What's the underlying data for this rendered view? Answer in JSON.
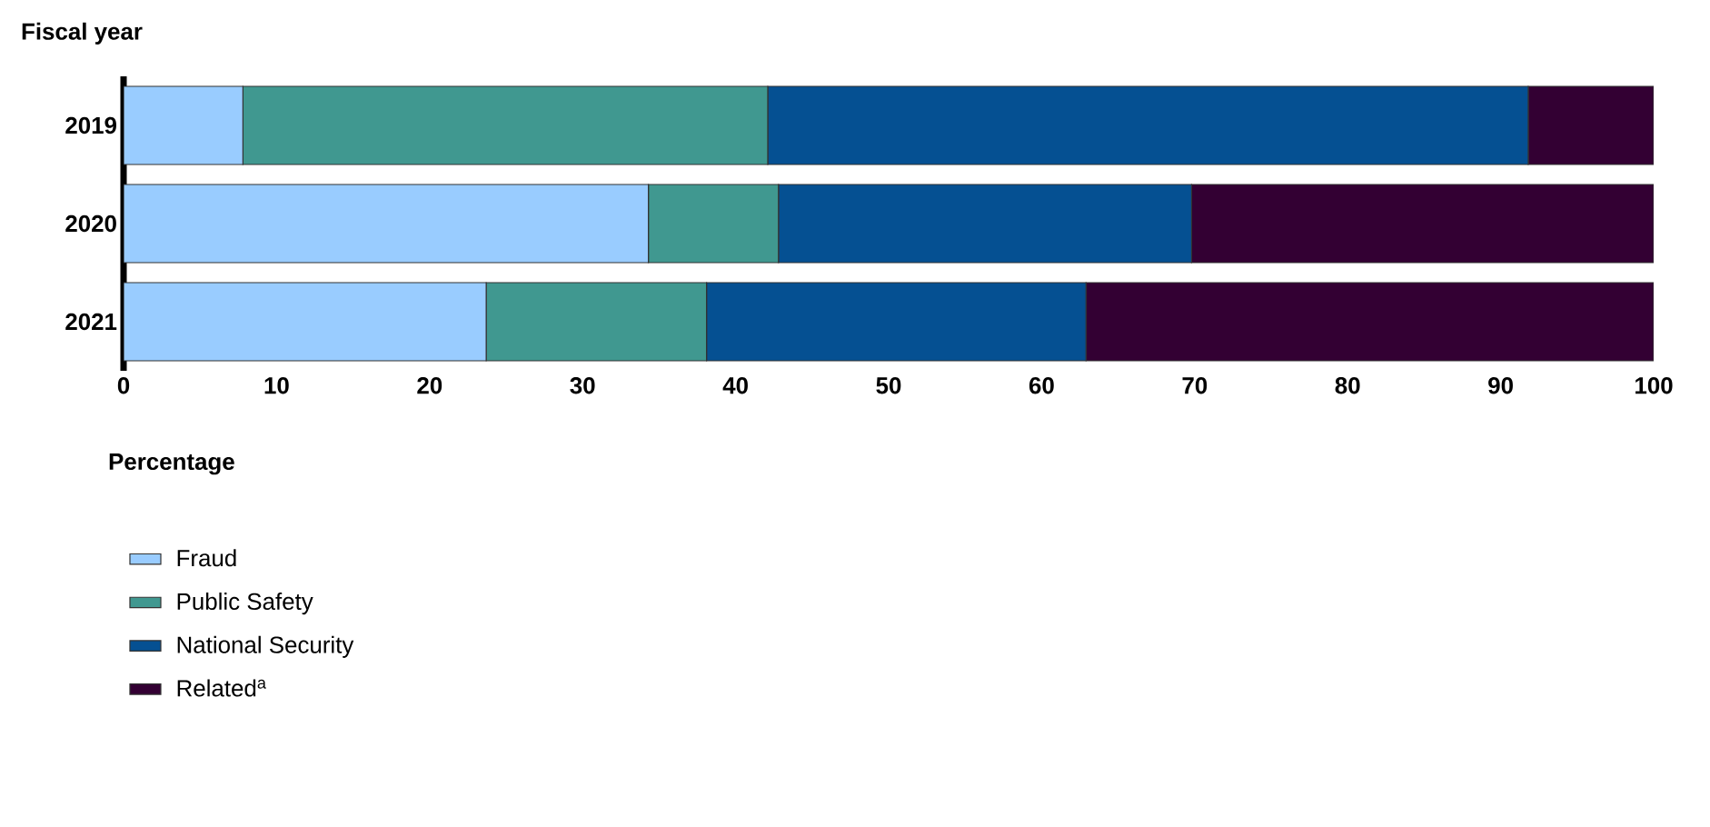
{
  "chart_data": {
    "type": "bar",
    "orientation": "horizontal",
    "stacked": true,
    "xlabel": "Percentage",
    "ylabel": "Fiscal year",
    "categories": [
      "2019",
      "2020",
      "2021"
    ],
    "series": [
      {
        "name": "Fraud",
        "color": "#99ccff",
        "values": [
          7.8,
          34.3,
          23.7
        ]
      },
      {
        "name": "Public Safety",
        "color": "#409890",
        "values": [
          34.3,
          8.5,
          14.4
        ]
      },
      {
        "name": "National Security",
        "color": "#055092",
        "values": [
          49.7,
          27.0,
          24.8
        ]
      },
      {
        "name": "Related$^{a}$",
        "color": "#330033",
        "values": [
          8.2,
          30.2,
          37.1
        ]
      }
    ],
    "xlim": [
      0,
      100
    ],
    "xticks": [
      0,
      10,
      20,
      30,
      40,
      50,
      60,
      70,
      80,
      90,
      100
    ],
    "legend": "bottom"
  }
}
